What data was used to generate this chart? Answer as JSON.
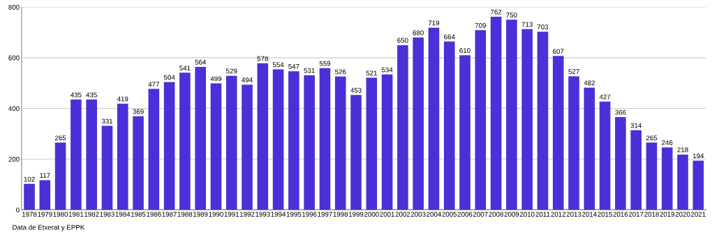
{
  "chart_data": {
    "type": "bar",
    "categories": [
      "1978",
      "1979",
      "1980",
      "1981",
      "1982",
      "1983",
      "1984",
      "1985",
      "1986",
      "1987",
      "1988",
      "1989",
      "1990",
      "1991",
      "1992",
      "1993",
      "1994",
      "1995",
      "1996",
      "1997",
      "1998",
      "1999",
      "2000",
      "2001",
      "2002",
      "2003",
      "2004",
      "2005",
      "2006",
      "2007",
      "2008",
      "2009",
      "2010",
      "2011",
      "2012",
      "2013",
      "2014",
      "2015",
      "2016",
      "2017",
      "2018",
      "2019",
      "2020",
      "2021"
    ],
    "values": [
      102,
      117,
      265,
      435,
      435,
      331,
      419,
      369,
      477,
      504,
      541,
      564,
      499,
      529,
      494,
      578,
      554,
      547,
      531,
      559,
      526,
      453,
      521,
      534,
      650,
      680,
      719,
      664,
      610,
      709,
      762,
      750,
      713,
      703,
      607,
      527,
      482,
      427,
      366,
      314,
      265,
      246,
      218,
      194
    ],
    "color": "#4a30d8",
    "ylim": [
      0,
      800
    ],
    "yticks": [
      0,
      200,
      400,
      600,
      800
    ],
    "grid": "y",
    "data_labels": true,
    "annotations": [
      "Data de Etxerat y EPPK"
    ]
  }
}
